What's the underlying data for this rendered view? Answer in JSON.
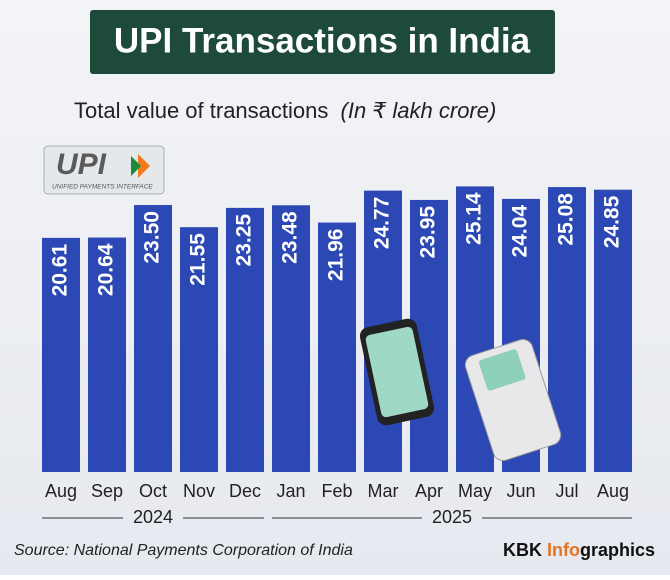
{
  "chart_data": {
    "type": "bar",
    "title": "UPI Transactions in India",
    "subtitle": "Total value of  transactions",
    "unit_note": "(In ₹ lakh crore)",
    "logo": {
      "text": "UPI",
      "caption": "UNIFIED PAYMENTS INTERFACE"
    },
    "color": "#2b48b4",
    "groups": [
      {
        "label": "2024",
        "categories": [
          "Aug",
          "Sep",
          "Oct",
          "Nov",
          "Dec"
        ],
        "values": [
          20.61,
          20.64,
          23.5,
          21.55,
          23.25
        ],
        "value_labels": [
          "20.61",
          "20.64",
          "23.50",
          "21.55",
          "23.25"
        ]
      },
      {
        "label": "2025",
        "categories": [
          "Jan",
          "Feb",
          "Mar",
          "Apr",
          "May",
          "Jun",
          "Jul",
          "Aug"
        ],
        "values": [
          23.48,
          21.96,
          24.77,
          23.95,
          25.14,
          24.04,
          25.08,
          24.85
        ],
        "value_labels": [
          "23.48",
          "21.96",
          "24.77",
          "23.95",
          "25.14",
          "24.04",
          "25.08",
          "24.85"
        ]
      }
    ],
    "source": "Source: National Payments Corporation of India",
    "brand": [
      "KBK ",
      "Info",
      "graphics"
    ]
  }
}
